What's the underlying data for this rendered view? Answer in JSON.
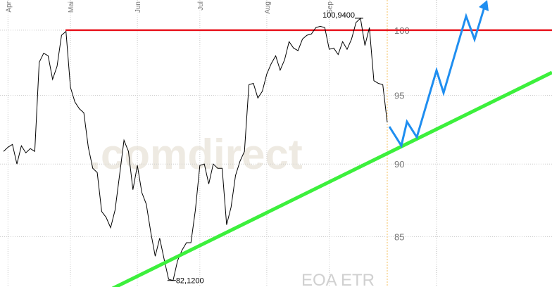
{
  "chart_data": {
    "type": "line",
    "log_scale": true,
    "grid": true,
    "categories": [
      null,
      "Apr",
      null,
      null,
      null,
      null,
      null,
      null,
      null,
      null,
      null,
      null,
      null,
      null,
      null,
      "Mai",
      null,
      null,
      null,
      null,
      null,
      null,
      null,
      null,
      null,
      null,
      null,
      null,
      null,
      null,
      "Jun",
      null,
      null,
      null,
      null,
      null,
      null,
      null,
      null,
      null,
      null,
      null,
      null,
      null,
      "Jul",
      null,
      null,
      null,
      null,
      null,
      null,
      null,
      null,
      null,
      null,
      null,
      null,
      null,
      null,
      "Aug",
      null,
      null,
      null,
      null,
      null,
      null,
      null,
      null,
      null,
      null,
      null,
      null,
      null,
      "Sep",
      null,
      null,
      null,
      null,
      null,
      null,
      null,
      null,
      null,
      null,
      null,
      null,
      null
    ],
    "series": [
      {
        "color": "#000000",
        "values": [
          90.9,
          91.2,
          91.4,
          90.0,
          91.3,
          90.8,
          91.1,
          90.9,
          97.5,
          98.2,
          98.0,
          96.2,
          97.2,
          99.6,
          99.9,
          95.6,
          94.5,
          94.0,
          93.7,
          91.2,
          89.7,
          89.4,
          86.7,
          86.3,
          85.6,
          86.8,
          89.2,
          91.7,
          90.9,
          88.2,
          89.9,
          88.0,
          87.2,
          85.3,
          83.7,
          84.9,
          83.5,
          82.2,
          82.12,
          83.4,
          84.1,
          84.6,
          84.6,
          86.8,
          89.9,
          90.0,
          88.6,
          90.0,
          89.7,
          89.7,
          85.8,
          87.0,
          89.2,
          90.2,
          90.9,
          95.8,
          95.9,
          94.8,
          95.3,
          96.6,
          97.4,
          98.0,
          96.9,
          97.7,
          99.1,
          98.6,
          98.4,
          99.3,
          99.6,
          99.7,
          100.2,
          100.3,
          100.2,
          98.5,
          98.6,
          98.1,
          99.1,
          98.5,
          99.3,
          100.6,
          100.94,
          98.8,
          100.2,
          96.1,
          95.9,
          95.8,
          93.0
        ]
      }
    ],
    "ylim": [
      81.7,
      102.4
    ],
    "yticks": [
      85,
      90,
      95,
      100
    ],
    "resistance": {
      "value": 100,
      "color": "#e8141e"
    },
    "annotations": [
      {
        "text": "100,9400",
        "value": 100.94
      },
      {
        "text": "82,1200",
        "value": 82.12
      }
    ],
    "watermark": ".comdirect",
    "symbol": "EOA ETR"
  }
}
